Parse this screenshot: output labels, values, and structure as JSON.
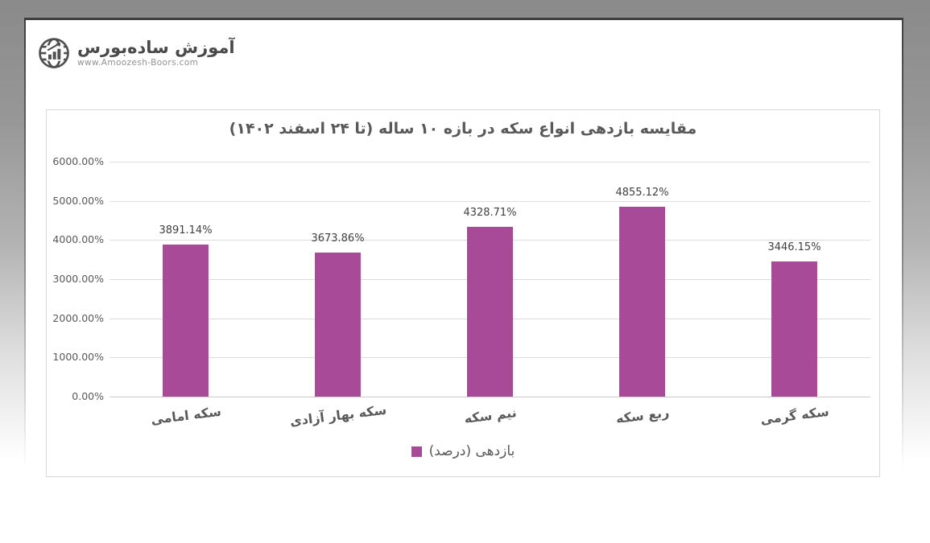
{
  "logo": {
    "brand": "آموزش ساده‌بورس",
    "website": "www.Amoozesh-Boors.com"
  },
  "chart_data": {
    "type": "bar",
    "title": "مقایسه بازدهی انواع سکه در بازه ۱۰ ساله (تا ۲۴ اسفند ۱۴۰۲)",
    "categories": [
      "سکه امامی",
      "سکه بهار آزادی",
      "نیم سکه",
      "ربع سکه",
      "سکه گرمی"
    ],
    "values": [
      3891.14,
      3673.86,
      4328.71,
      4855.12,
      3446.15
    ],
    "value_labels": [
      "3891.14%",
      "3673.86%",
      "4328.71%",
      "4855.12%",
      "3446.15%"
    ],
    "y_ticks": [
      "6000.00%",
      "5000.00%",
      "4000.00%",
      "3000.00%",
      "2000.00%",
      "1000.00%",
      "0.00%"
    ],
    "ylim": [
      0,
      6000
    ],
    "xlabel": "",
    "ylabel": "",
    "grid": true,
    "legend": "بازدهی (درصد)",
    "legend_position": "bottom",
    "bar_color": "#a84a98"
  }
}
